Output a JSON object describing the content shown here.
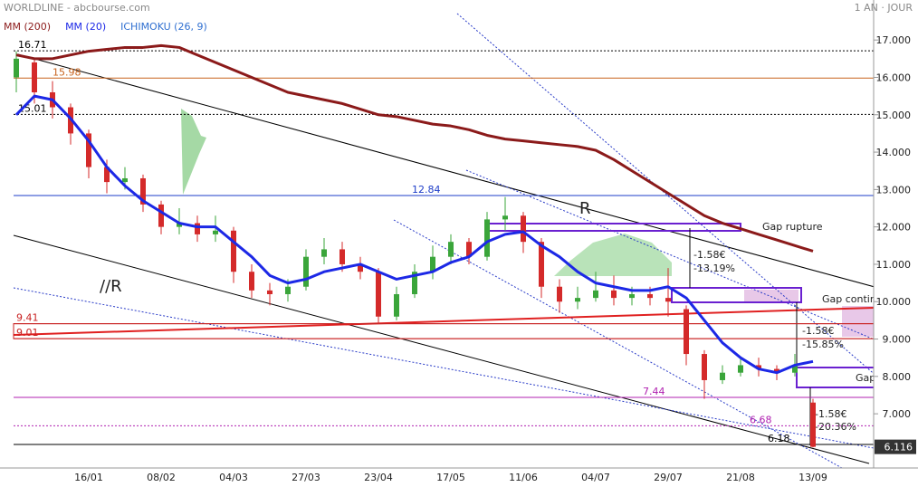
{
  "chart_data": {
    "type": "candlestick",
    "title": "WORLDLINE - abcbourse.com",
    "period": "1 AN · JOUR",
    "categories": [
      null,
      null,
      null,
      null,
      "16/01",
      null,
      null,
      null,
      "08/02",
      null,
      null,
      null,
      "04/03",
      null,
      null,
      null,
      "27/03",
      null,
      null,
      null,
      "23/04",
      null,
      null,
      null,
      "17/05",
      null,
      null,
      null,
      "11/06",
      null,
      null,
      null,
      "04/07",
      null,
      null,
      null,
      "29/07",
      null,
      null,
      null,
      "21/08",
      null,
      null,
      null,
      "13/09"
    ],
    "open": [
      16.0,
      16.4,
      15.6,
      15.2,
      14.5,
      13.6,
      13.2,
      13.3,
      12.6,
      12.0,
      12.1,
      11.8,
      11.9,
      10.8,
      10.3,
      10.2,
      10.4,
      11.2,
      11.4,
      11.0,
      10.8,
      9.6,
      10.2,
      10.8,
      11.2,
      11.6,
      11.2,
      12.2,
      12.3,
      11.6,
      10.4,
      10.0,
      10.1,
      10.3,
      10.1,
      10.2,
      10.1,
      9.8,
      8.6,
      7.9,
      8.1,
      8.3,
      8.2,
      8.1,
      7.3
    ],
    "high": [
      16.7,
      16.5,
      15.9,
      15.3,
      14.6,
      13.8,
      13.6,
      13.4,
      12.7,
      12.5,
      12.3,
      12.3,
      12.0,
      11.0,
      10.5,
      10.6,
      11.4,
      11.7,
      11.6,
      11.2,
      10.9,
      10.4,
      11.0,
      11.5,
      11.8,
      11.7,
      12.4,
      12.8,
      12.4,
      11.7,
      10.6,
      10.4,
      10.8,
      10.7,
      10.4,
      10.4,
      10.9,
      9.9,
      8.7,
      8.3,
      8.5,
      8.5,
      8.3,
      8.6,
      7.4
    ],
    "low": [
      15.6,
      15.3,
      14.9,
      14.2,
      13.3,
      12.9,
      13.0,
      12.4,
      11.8,
      11.8,
      11.6,
      11.6,
      10.5,
      10.1,
      9.9,
      10.0,
      10.3,
      11.0,
      10.8,
      10.6,
      9.4,
      9.5,
      10.1,
      10.6,
      11.0,
      11.0,
      11.1,
      11.9,
      11.3,
      10.1,
      9.7,
      9.8,
      10.0,
      9.9,
      9.9,
      9.9,
      9.6,
      8.3,
      7.4,
      7.8,
      8.0,
      8.0,
      7.9,
      8.0,
      6.1
    ],
    "close": [
      16.5,
      15.6,
      15.2,
      14.5,
      13.6,
      13.2,
      13.3,
      12.6,
      12.0,
      12.1,
      11.8,
      11.9,
      10.8,
      10.3,
      10.2,
      10.4,
      11.2,
      11.4,
      11.0,
      10.8,
      9.6,
      10.2,
      10.8,
      11.2,
      11.6,
      11.2,
      12.2,
      12.3,
      11.6,
      10.4,
      10.0,
      10.1,
      10.3,
      10.1,
      10.2,
      10.1,
      10.0,
      8.6,
      7.9,
      8.1,
      8.3,
      8.2,
      8.1,
      8.3,
      6.116
    ],
    "up_color": "#3aa53a",
    "down_color": "#d42a2a",
    "series": [
      {
        "name": "MM (200)",
        "color": "#8b1a1a",
        "values": [
          16.6,
          16.5,
          16.5,
          16.6,
          16.7,
          16.75,
          16.8,
          16.8,
          16.85,
          16.8,
          16.6,
          16.4,
          16.2,
          16.0,
          15.8,
          15.6,
          15.5,
          15.4,
          15.3,
          15.15,
          15.0,
          14.95,
          14.85,
          14.75,
          14.7,
          14.6,
          14.45,
          14.35,
          14.3,
          14.25,
          14.2,
          14.15,
          14.05,
          13.8,
          13.5,
          13.2,
          12.9,
          12.6,
          12.3,
          12.1,
          11.95,
          11.8,
          11.65,
          11.5,
          11.35
        ]
      },
      {
        "name": "MM (20)",
        "color": "#1c28e6",
        "values": [
          15.0,
          15.5,
          15.4,
          14.9,
          14.3,
          13.6,
          13.1,
          12.7,
          12.4,
          12.1,
          12.0,
          12.0,
          11.6,
          11.2,
          10.7,
          10.5,
          10.6,
          10.8,
          10.9,
          11.0,
          10.8,
          10.6,
          10.7,
          10.8,
          11.05,
          11.2,
          11.6,
          11.8,
          11.87,
          11.5,
          11.2,
          10.8,
          10.5,
          10.4,
          10.3,
          10.3,
          10.4,
          10.1,
          9.5,
          8.9,
          8.5,
          8.2,
          8.1,
          8.3,
          8.4
        ]
      }
    ],
    "indicators": [
      {
        "name": "ICHIMOKU (26, 9)",
        "color": "#2f6fd0"
      }
    ],
    "levels": [
      {
        "value": 16.71,
        "color": "#000000"
      },
      {
        "value": 15.98,
        "color": "#c8641e"
      },
      {
        "value": 15.01,
        "color": "#000000"
      },
      {
        "value": 12.84,
        "color": "#1c3cc8"
      },
      {
        "value": 9.41,
        "color": "#c82020"
      },
      {
        "value": 9.01,
        "color": "#c82020"
      },
      {
        "value": 7.44,
        "color": "#b020b0"
      },
      {
        "value": 6.68,
        "color": "#b020b0"
      },
      {
        "value": 6.18,
        "color": "#000000"
      }
    ],
    "last_price": 6.116,
    "annotations": [
      "R",
      "//R",
      "Gap rupture",
      "Gap contin",
      "Gap",
      "-1.58€",
      "-13.19%",
      "-1.58€",
      "-15.85%",
      "-1.58€",
      "-20.36%"
    ],
    "ylim": [
      5.55,
      18.07
    ],
    "yticks": [
      {
        "value": 7,
        "label": "7.000"
      },
      {
        "value": 8,
        "label": "8.000"
      },
      {
        "value": 9,
        "label": "9.000"
      },
      {
        "value": 10,
        "label": "10.000"
      },
      {
        "value": 11,
        "label": "11.000"
      },
      {
        "value": 12,
        "label": "12.000"
      },
      {
        "value": 13,
        "label": "13.000"
      },
      {
        "value": 14,
        "label": "14.000"
      },
      {
        "value": 15,
        "label": "15.000"
      },
      {
        "value": 16,
        "label": "16.000"
      },
      {
        "value": 17,
        "label": "17.000"
      }
    ]
  }
}
